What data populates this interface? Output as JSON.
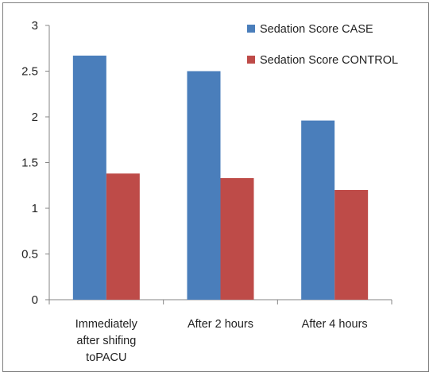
{
  "chart_data": {
    "type": "bar",
    "title": "",
    "xlabel": "",
    "ylabel": "",
    "categories": [
      [
        "Immediately",
        "after shifing",
        "toPACU"
      ],
      [
        "After 2 hours"
      ],
      [
        "After 4 hours"
      ]
    ],
    "series": [
      {
        "name": "Sedation Score CASE",
        "color": "#4a7ebb",
        "values": [
          2.67,
          2.5,
          1.96
        ]
      },
      {
        "name": "Sedation Score CONTROL",
        "color": "#be4b48",
        "values": [
          1.38,
          1.33,
          1.2
        ]
      }
    ],
    "ylim": [
      0,
      3
    ],
    "yticks": [
      "0",
      "0.5",
      "1",
      "1.5",
      "2",
      "2.5",
      "3"
    ],
    "grid": false,
    "legend_position": "top-right"
  }
}
